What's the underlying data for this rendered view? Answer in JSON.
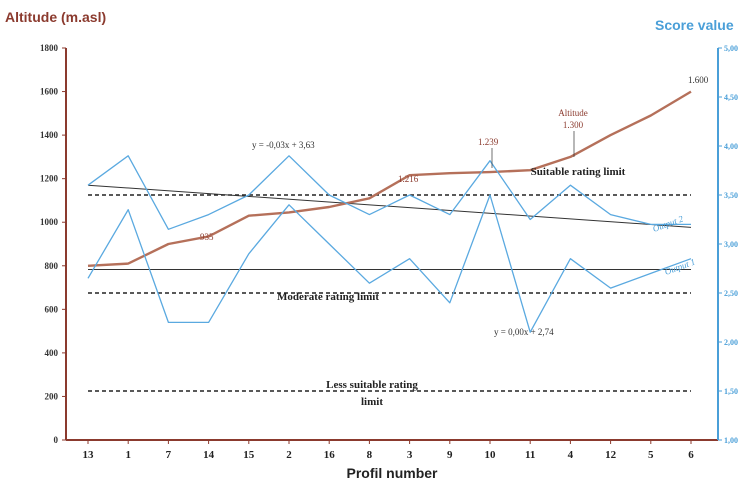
{
  "chart_data": {
    "type": "line",
    "categories": [
      "13",
      "1",
      "7",
      "14",
      "15",
      "2",
      "16",
      "8",
      "3",
      "9",
      "10",
      "11",
      "4",
      "12",
      "5",
      "6"
    ],
    "xlabel": "Profil number",
    "ylabel_left": "Altitude (m.asl)",
    "ylabel_right": "Score value",
    "ylim_left": [
      0,
      1800
    ],
    "ylim_right": [
      1.0,
      5.0
    ],
    "yticks_left": [
      "0",
      "200",
      "400",
      "600",
      "800",
      "1000",
      "1200",
      "1400",
      "1600",
      "1800"
    ],
    "yticks_right": [
      "1,00",
      "1,50",
      "2,00",
      "2,50",
      "3,00",
      "3,50",
      "4,00",
      "4,50",
      "5,00"
    ],
    "series": [
      {
        "axis": "left",
        "color": "#b5705a",
        "label": "Altitude",
        "values": [
          800,
          810,
          900,
          935,
          1030,
          1045,
          1070,
          1110,
          1216,
          1225,
          1230,
          1239,
          1300,
          1400,
          1490,
          1600
        ]
      },
      {
        "axis": "right",
        "color": "#5aa9e0",
        "label": "Output 1",
        "values": [
          2.65,
          3.35,
          2.2,
          2.2,
          2.9,
          3.4,
          3.0,
          2.6,
          2.85,
          2.4,
          3.5,
          2.1,
          2.85,
          2.55,
          2.7,
          2.85
        ]
      },
      {
        "axis": "right",
        "color": "#5aa9e0",
        "label": "Output 2",
        "values": [
          3.6,
          3.9,
          3.15,
          3.3,
          3.5,
          3.9,
          3.5,
          3.3,
          3.5,
          3.3,
          3.85,
          3.25,
          3.6,
          3.3,
          3.2,
          3.2
        ]
      }
    ],
    "trendlines": [
      {
        "label": "y = -0,03x + 3,63",
        "start": 3.6,
        "end": 3.17
      },
      {
        "label": "y = 0,00x + 2,74",
        "start": 2.74,
        "end": 2.74
      }
    ],
    "limits": [
      {
        "label": "Suitable rating limit",
        "value": 3.5
      },
      {
        "label": "Moderate rating limit",
        "value": 2.5
      },
      {
        "label_line1": "Less suitable rating",
        "label_line2": "limit",
        "value": 1.5
      }
    ],
    "annotations": {
      "altitude_label": "Altitude",
      "altitude_value": "1.300",
      "p935": "935",
      "p1216": "1.216",
      "p1239": "1.239",
      "p1600": "1.600",
      "output1": "Output 1",
      "output2": "Output 2"
    },
    "colors": {
      "left_axis": "#8b3a2e",
      "right_axis": "#4a9fd8",
      "altitude_line": "#b5705a",
      "output_lines": "#5aa9e0",
      "trend_lines": "#333333"
    }
  }
}
